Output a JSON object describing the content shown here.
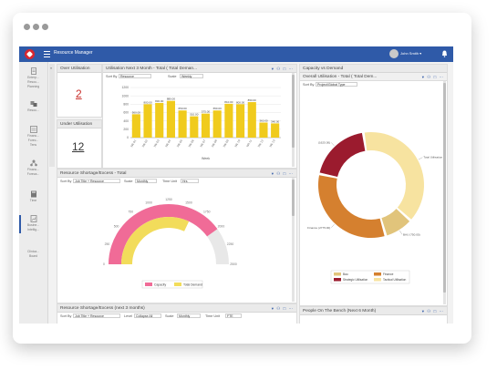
{
  "app": {
    "name": "Resource Manager",
    "user_name": "John Smith ▾"
  },
  "sidebar": {
    "items": [
      {
        "label_line1": "Enterp...",
        "label_line2": "Resou...",
        "label_line3": "Planning",
        "icon": "document-icon"
      },
      {
        "label_line1": "Resou...",
        "label_line2": "",
        "label_line3": "",
        "icon": "resources-icon"
      },
      {
        "label_line1": "Financ...",
        "label_line2": "Forec...",
        "label_line3": "Tens",
        "icon": "finance-icon"
      },
      {
        "label_line1": "Financ...",
        "label_line2": "Foreca...",
        "label_line3": "",
        "icon": "tree-icon"
      },
      {
        "label_line1": "Time",
        "label_line2": "",
        "label_line3": "",
        "icon": "timesheet-icon"
      },
      {
        "label_line1": "Busine...",
        "label_line2": "Intellig...",
        "label_line3": "",
        "icon": "report-icon"
      },
      {
        "label_line1": "Clinica...",
        "label_line2": "Board",
        "label_line3": "",
        "icon": "board-icon"
      }
    ]
  },
  "over_utilisation": {
    "title": "Over Utilisation",
    "value": "2"
  },
  "under_utilisation": {
    "title": "Under Utilisation",
    "value": "12"
  },
  "util_panel": {
    "title": "Utilisation Next 3 Month - Total ( Total Deman...",
    "sort_label": "Sort By",
    "sort_value": "Resource",
    "scale_label": "Scale",
    "scale_value": "Weekly",
    "x_axis_label": "Week"
  },
  "shortage_panel": {
    "title": "Resource Shortage/Excess - Total",
    "sort_label": "Sort By",
    "sort_value": "Job Title + Resource",
    "scale_label": "Scale",
    "scale_value": "Monthly",
    "time_label": "Time Unit",
    "time_value": "Hrs",
    "legend_capacity": "Capacity",
    "legend_demand": "Total Demand"
  },
  "shortage3_panel": {
    "title": "Resource Shortage/Excess (next 3 months)",
    "sort_label": "Sort By",
    "sort_value": "Job Title + Resource",
    "level_label": "Level",
    "level_value": "Collapse All",
    "scale_label": "Scale",
    "scale_value": "Monthly",
    "time_label": "Time Unit",
    "time_value": "FTE"
  },
  "capacity_panel": {
    "title": "Capacity vs Demand",
    "subtitle": "Overall Utilisation - Total ( Total Dem...",
    "sort_label": "Sort By",
    "sort_value": "Project/Global Type"
  },
  "bench_panel": {
    "title": "People On The Bench (Next 6 Month)"
  },
  "chart_data": [
    {
      "type": "bar",
      "title": "",
      "xlabel": "Week",
      "ylabel": "",
      "ylim": [
        0,
        1200
      ],
      "y_ticks": [
        "0",
        "200",
        "400",
        "600",
        "800",
        "1000",
        "1200"
      ],
      "categories": [
        "Wk 01",
        "Wk 02",
        "Wk 03",
        "Wk 04",
        "Wk 05",
        "Wk 06",
        "Wk 07",
        "Wk 08",
        "Wk 09",
        "Wk 10",
        "Wk 11",
        "Wk 12",
        "Wk 13"
      ],
      "values": [
        560,
        800,
        830,
        880,
        650,
        510,
        575,
        650,
        810,
        800,
        850,
        360,
        340
      ],
      "data_labels": [
        "560.00",
        "800.00",
        "830.00",
        "880.00",
        "650.00",
        "510.00",
        "575.00",
        "650.00",
        "810.00",
        "800.00",
        "850.00",
        "360.00",
        "340.00"
      ],
      "color": "#f0cb1d"
    },
    {
      "type": "gauge",
      "title": "",
      "series": [
        {
          "name": "Capacity",
          "value": 2000,
          "color": "#f06b97"
        },
        {
          "name": "Total Demand",
          "value": 1600,
          "color": "#f2dc5b"
        }
      ],
      "scale": {
        "min": 0,
        "max": 2500
      },
      "scale_labels": [
        "0",
        "250",
        "500",
        "750",
        "1000",
        "1250",
        "1500",
        "1750",
        "2000",
        "2250",
        "2500"
      ]
    },
    {
      "type": "pie",
      "title": "",
      "series": [
        {
          "name": "Total Utilisation",
          "value": 3300,
          "color": "#f7e3a0",
          "label": "Total Utilisation (3300.00)"
        },
        {
          "name": "Bau",
          "value": 750,
          "color": "#e1c47b",
          "label": "BAU (750.00)"
        },
        {
          "name": "Finance",
          "value": 2775,
          "color": "#d5802f",
          "label": "Finance (2775.00)"
        },
        {
          "name": "Strategic Utilisation",
          "value": 1625,
          "color": "#9b1b2e",
          "label": "(1625.00)"
        }
      ],
      "legend": [
        "Bau",
        "Finance",
        "Strategic Utilisation",
        "Tactical Utilisation"
      ],
      "legend_colors": [
        "#e1c47b",
        "#d5802f",
        "#9b1b2e",
        "#f7e3a0"
      ]
    }
  ]
}
